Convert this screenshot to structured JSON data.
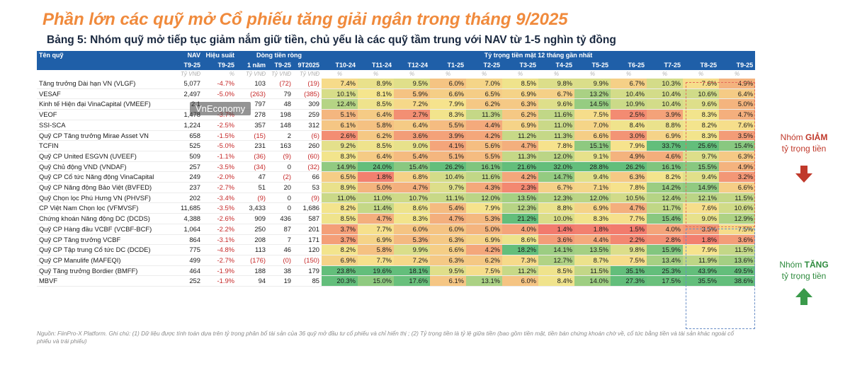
{
  "title": "Phần lớn các quỹ mở Cổ phiếu tăng giải ngân trong tháng 9/2025",
  "subtitle": "Bảng 5: Nhóm quỹ mở tiếp tục giảm nắm giữ tiền, chủ yếu là các quỹ tầm trung với NAV từ 1-5 nghìn tỷ đồng",
  "header": {
    "fund_name": "Tên quỹ",
    "nav": "NAV",
    "performance": "Hiệu suất",
    "net_flow": "Dòng tiền ròng",
    "cash_ratio": "Tỷ trọng tiền mặt 12 tháng gần nhất",
    "nav_period": "T9-25",
    "perf_period": "T9-25",
    "flow_periods": [
      "1 năm",
      "T9-25",
      "9T2025"
    ],
    "months": [
      "T10-24",
      "T11-24",
      "T12-24",
      "T1-25",
      "T2-25",
      "T3-25",
      "T4-25",
      "T5-25",
      "T6-25",
      "T7-25",
      "T8-25",
      "T9-25"
    ],
    "unit_vnd": "Tỷ VNĐ",
    "unit_pct": "%"
  },
  "rows": [
    {
      "name": "Tăng trưởng Dài hạn VN (VLGF)",
      "nav": "5,077",
      "perf": "-4.7%",
      "f1": "103",
      "f2": "(72)",
      "f3": "(19)",
      "cash": [
        "7.4%",
        "8.9%",
        "9.5%",
        "6.0%",
        "7.0%",
        "8.5%",
        "9.8%",
        "9.9%",
        "6.7%",
        "10.3%",
        "7.6%",
        "4.9%"
      ]
    },
    {
      "name": "VESAF",
      "nav": "2,497",
      "perf": "-5.0%",
      "f1": "(263)",
      "f2": "79",
      "f3": "(385)",
      "cash": [
        "10.1%",
        "8.1%",
        "5.9%",
        "6.6%",
        "6.5%",
        "6.9%",
        "6.7%",
        "13.2%",
        "10.4%",
        "10.4%",
        "10.6%",
        "6.4%"
      ]
    },
    {
      "name": "Kinh tế Hiện đại VinaCapital (VMEEF)",
      "nav": "2,1",
      "perf": "",
      "f1": "797",
      "f2": "48",
      "f3": "309",
      "cash": [
        "12.4%",
        "8.5%",
        "7.2%",
        "7.9%",
        "6.2%",
        "6.3%",
        "9.6%",
        "14.5%",
        "10.9%",
        "10.4%",
        "9.6%",
        "5.0%"
      ]
    },
    {
      "name": "VEOF",
      "nav": "1,478",
      "perf": "-3.7%",
      "f1": "278",
      "f2": "198",
      "f3": "259",
      "cash": [
        "5.1%",
        "6.4%",
        "2.7%",
        "8.3%",
        "11.3%",
        "6.2%",
        "11.6%",
        "7.5%",
        "2.5%",
        "3.9%",
        "8.3%",
        "4.7%"
      ]
    },
    {
      "name": "SSI-SCA",
      "nav": "1,224",
      "perf": "-2.5%",
      "f1": "357",
      "f2": "148",
      "f3": "312",
      "cash": [
        "6.1%",
        "5.8%",
        "6.4%",
        "5.5%",
        "4.4%",
        "6.9%",
        "11.0%",
        "7.0%",
        "8.4%",
        "8.8%",
        "8.2%",
        "7.6%"
      ]
    },
    {
      "name": "Quỹ CP Tăng trưởng Mirae Asset VN",
      "nav": "658",
      "perf": "-1.5%",
      "f1": "(15)",
      "f2": "2",
      "f3": "(6)",
      "cash": [
        "2.6%",
        "6.2%",
        "3.6%",
        "3.9%",
        "4.2%",
        "11.2%",
        "11.3%",
        "6.6%",
        "3.0%",
        "6.9%",
        "8.3%",
        "3.5%"
      ]
    },
    {
      "name": "TCFIN",
      "nav": "525",
      "perf": "-5.0%",
      "f1": "231",
      "f2": "163",
      "f3": "260",
      "cash": [
        "9.2%",
        "8.5%",
        "9.0%",
        "4.1%",
        "5.6%",
        "4.7%",
        "7.8%",
        "15.1%",
        "7.9%",
        "33.7%",
        "25.6%",
        "15.4%"
      ]
    },
    {
      "name": "Quỹ CP United ESGVN (UVEEF)",
      "nav": "509",
      "perf": "-1.1%",
      "f1": "(36)",
      "f2": "(9)",
      "f3": "(60)",
      "cash": [
        "8.3%",
        "6.4%",
        "5.4%",
        "5.1%",
        "5.5%",
        "11.3%",
        "12.0%",
        "9.1%",
        "4.9%",
        "4.6%",
        "9.7%",
        "6.3%"
      ]
    },
    {
      "name": "Quỹ Chủ động VND (VNDAF)",
      "nav": "257",
      "perf": "-3.5%",
      "f1": "(34)",
      "f2": "0",
      "f3": "(32)",
      "cash": [
        "14.9%",
        "24.0%",
        "15.4%",
        "26.2%",
        "16.1%",
        "21.6%",
        "32.0%",
        "28.8%",
        "26.2%",
        "16.1%",
        "15.5%",
        "4.9%"
      ]
    },
    {
      "name": "Quỹ CP Cổ tức Năng động VinaCapital",
      "nav": "249",
      "perf": "-2.0%",
      "f1": "47",
      "f2": "(2)",
      "f3": "66",
      "cash": [
        "6.5%",
        "1.8%",
        "6.8%",
        "10.4%",
        "11.6%",
        "4.2%",
        "14.7%",
        "9.4%",
        "6.3%",
        "8.2%",
        "9.4%",
        "3.2%"
      ]
    },
    {
      "name": "Quỹ CP Năng động Bảo Việt (BVFED)",
      "nav": "237",
      "perf": "-2.7%",
      "f1": "51",
      "f2": "20",
      "f3": "53",
      "cash": [
        "8.9%",
        "5.0%",
        "4.7%",
        "9.7%",
        "4.3%",
        "2.3%",
        "6.7%",
        "7.1%",
        "7.8%",
        "14.2%",
        "14.9%",
        "6.6%"
      ]
    },
    {
      "name": "Quỹ Chọn lọc Phú Hưng VN (PHVSF)",
      "nav": "202",
      "perf": "-3.4%",
      "f1": "(9)",
      "f2": "0",
      "f3": "(9)",
      "cash": [
        "11.0%",
        "11.0%",
        "10.7%",
        "11.1%",
        "12.0%",
        "13.5%",
        "12.3%",
        "12.0%",
        "10.5%",
        "12.4%",
        "12.1%",
        "11.5%"
      ]
    },
    {
      "name": "CP Việt Nam Chọn lọc (VFMVSF)",
      "nav": "11,685",
      "perf": "-3.5%",
      "f1": "3,433",
      "f2": "0",
      "f3": "1,686",
      "cash": [
        "8.2%",
        "11.4%",
        "8.6%",
        "5.4%",
        "7.9%",
        "12.3%",
        "8.8%",
        "6.9%",
        "4.7%",
        "11.7%",
        "7.6%",
        "10.6%"
      ]
    },
    {
      "name": "Chứng khoán Năng động DC (DCDS)",
      "nav": "4,388",
      "perf": "-2.6%",
      "f1": "909",
      "f2": "436",
      "f3": "587",
      "cash": [
        "8.5%",
        "4.7%",
        "8.3%",
        "4.7%",
        "5.3%",
        "21.2%",
        "10.0%",
        "8.3%",
        "7.7%",
        "15.4%",
        "9.0%",
        "12.9%"
      ]
    },
    {
      "name": "Quỹ CP Hàng đầu VCBF (VCBF-BCF)",
      "nav": "1,064",
      "perf": "-2.2%",
      "f1": "250",
      "f2": "87",
      "f3": "201",
      "cash": [
        "3.7%",
        "7.7%",
        "6.0%",
        "6.0%",
        "5.0%",
        "4.0%",
        "1.4%",
        "1.8%",
        "1.5%",
        "4.0%",
        "3.5%",
        "7.5%"
      ]
    },
    {
      "name": "Quỹ CP Tăng trưởng VCBF",
      "nav": "864",
      "perf": "-3.1%",
      "f1": "208",
      "f2": "7",
      "f3": "171",
      "cash": [
        "3.7%",
        "6.9%",
        "5.3%",
        "6.3%",
        "6.9%",
        "8.6%",
        "3.6%",
        "4.4%",
        "2.2%",
        "2.8%",
        "1.8%",
        "3.6%"
      ]
    },
    {
      "name": "Quỹ CP Tập trung Cổ tức DC (DCDE)",
      "nav": "775",
      "perf": "-4.8%",
      "f1": "113",
      "f2": "46",
      "f3": "120",
      "cash": [
        "8.2%",
        "5.8%",
        "9.9%",
        "6.6%",
        "4.2%",
        "18.2%",
        "14.1%",
        "13.5%",
        "9.8%",
        "15.9%",
        "7.9%",
        "11.5%"
      ]
    },
    {
      "name": "Quỹ CP Manulife (MAFEQI)",
      "nav": "499",
      "perf": "-2.7%",
      "f1": "(176)",
      "f2": "(0)",
      "f3": "(150)",
      "cash": [
        "6.9%",
        "7.7%",
        "7.2%",
        "6.3%",
        "6.2%",
        "7.3%",
        "12.7%",
        "8.7%",
        "7.5%",
        "13.4%",
        "11.9%",
        "13.6%"
      ]
    },
    {
      "name": "Quỹ Tăng trưởng Bordier (BMFF)",
      "nav": "464",
      "perf": "-1.9%",
      "f1": "188",
      "f2": "38",
      "f3": "179",
      "cash": [
        "23.8%",
        "19.6%",
        "18.1%",
        "9.5%",
        "7.5%",
        "11.2%",
        "8.5%",
        "11.5%",
        "35.1%",
        "25.3%",
        "43.9%",
        "49.5%"
      ]
    },
    {
      "name": "MBVF",
      "nav": "252",
      "perf": "-1.9%",
      "f1": "94",
      "f2": "19",
      "f3": "85",
      "cash": [
        "20.3%",
        "15.0%",
        "17.6%",
        "6.1%",
        "13.1%",
        "6.0%",
        "8.4%",
        "14.0%",
        "27.3%",
        "17.5%",
        "35.5%",
        "38.6%"
      ]
    }
  ],
  "side_reduce": {
    "prefix": "Nhóm ",
    "bold": "GIẢM",
    "line2": "tỷ trọng tiền"
  },
  "side_increase": {
    "prefix": "Nhóm ",
    "bold": "TĂNG",
    "line2": "tỷ trọng tiền"
  },
  "watermark": "VnEconomy",
  "source_note": "Nguồn: FiinPro-X Platform. Ghi chú: (1) Dữ liệu được tính toán dựa trên tỷ trọng phân bổ tài sản của 36 quỹ mở đầu tư cổ phiếu và chỉ hiển thị ; (2) Tỷ trọng tiền là tỷ lệ giữa tiền (bao gồm tiền mặt, tiền bán chứng khoán chờ về, cổ tức bằng tiền và tài sản khác ngoài cổ phiếu và trái phiếu)",
  "colors": {
    "title": "#f08a3c",
    "header_bg": "#1f5fa8",
    "negative": "#c62828",
    "heat_low": "#f2736b",
    "heat_mid": "#f6e58d",
    "heat_high": "#63be7b"
  }
}
